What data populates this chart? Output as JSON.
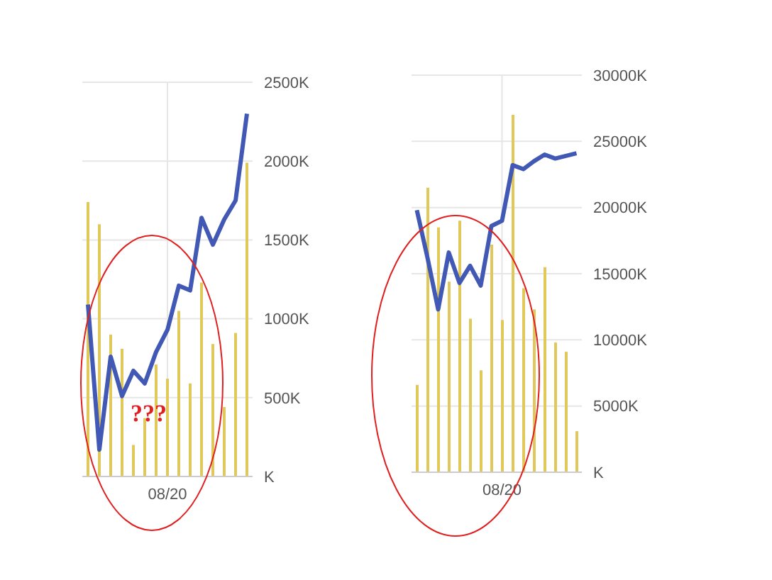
{
  "chart_data": [
    {
      "type": "bar",
      "categories": [
        null,
        null,
        null,
        null,
        null,
        null,
        null,
        "08/20",
        null,
        null,
        null,
        null,
        null,
        null,
        null
      ],
      "series": [
        {
          "color": "#e0c85a",
          "values": [
            1740,
            1600,
            900,
            810,
            200,
            370,
            710,
            620,
            1050,
            590,
            1230,
            840,
            440,
            910,
            1990
          ]
        },
        {
          "type": "line",
          "color": "#4158b4",
          "values": [
            1090,
            170,
            760,
            510,
            670,
            590,
            790,
            930,
            1210,
            1180,
            1640,
            1470,
            1630,
            1750,
            2300
          ]
        }
      ],
      "ylim": [
        0,
        2500
      ],
      "yticks": [
        {
          "value": 0,
          "label": "K"
        },
        {
          "value": 500,
          "label": "500K"
        },
        {
          "value": 1000,
          "label": "1000K"
        },
        {
          "value": 1500,
          "label": "1500K"
        },
        {
          "value": 2000,
          "label": "2000K"
        },
        {
          "value": 2500,
          "label": "2500K"
        }
      ],
      "grid": true,
      "legend": false,
      "annotations": [
        "???"
      ]
    },
    {
      "type": "bar",
      "categories": [
        null,
        null,
        null,
        null,
        null,
        null,
        null,
        null,
        "08/20",
        null,
        null,
        null,
        null,
        null,
        null,
        null
      ],
      "series": [
        {
          "color": "#e0c85a",
          "values": [
            6600,
            21500,
            18500,
            14400,
            19000,
            11600,
            7700,
            17200,
            11500,
            27000,
            13900,
            12300,
            15500,
            9800,
            9100,
            3100
          ]
        },
        {
          "type": "line",
          "color": "#4158b4",
          "values": [
            19800,
            16200,
            12300,
            16600,
            14300,
            15600,
            14100,
            18600,
            19000,
            23200,
            22900,
            23500,
            24000,
            23700,
            23900,
            24100
          ]
        }
      ],
      "ylim": [
        0,
        30000
      ],
      "yticks": [
        {
          "value": 0,
          "label": "K"
        },
        {
          "value": 5000,
          "label": "5000K"
        },
        {
          "value": 10000,
          "label": "10000K"
        },
        {
          "value": 15000,
          "label": "15000K"
        },
        {
          "value": 20000,
          "label": "20000K"
        },
        {
          "value": 25000,
          "label": "25000K"
        },
        {
          "value": 30000,
          "label": "30000K"
        }
      ],
      "grid": true,
      "legend": false
    }
  ]
}
